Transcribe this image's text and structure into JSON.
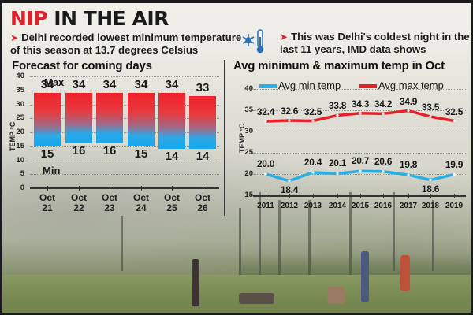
{
  "header": {
    "title_red": "NIP",
    "title_black": "IN THE AIR",
    "bullet1": "Delhi recorded lowest minimum temperature of this season at 13.7 degrees Celsius",
    "bullet1_line1": "Delhi recorded lowest minimum temperature",
    "bullet1_line2": "of this season at 13.7 degrees Celsius",
    "bullet2_line1": "This was Delhi's coldest night in the",
    "bullet2_line2": "last 11 years, IMD data shows",
    "arrow": "➤",
    "icon": "snowflake-thermometer-icon"
  },
  "colors": {
    "accent_red": "#e0202a",
    "max_line": "#e8202a",
    "min_line": "#29aee6"
  },
  "chart_data": [
    {
      "type": "bar",
      "title": "Forecast for coming days",
      "ylabel": "TEMP °C",
      "xlabel": "",
      "ylim": [
        0,
        40
      ],
      "yticks": [
        0,
        5,
        10,
        15,
        20,
        25,
        30,
        35,
        40
      ],
      "categories": [
        "Oct 21",
        "Oct 22",
        "Oct 23",
        "Oct 24",
        "Oct 25",
        "Oct 26"
      ],
      "series": [
        {
          "name": "Max",
          "values": [
            34,
            34,
            34,
            34,
            34,
            33
          ]
        },
        {
          "name": "Min",
          "values": [
            15,
            16,
            16,
            15,
            14,
            14
          ]
        }
      ],
      "annotations": [
        "Max",
        "Min"
      ],
      "grid": true,
      "note": "floating range bars from Min to Max, gradient red (top) to blue (bottom)"
    },
    {
      "type": "line",
      "title": "Avg minimum & maximum temp in Oct",
      "ylabel": "TEMP °C",
      "xlabel": "",
      "ylim": [
        15,
        40
      ],
      "yticks": [
        15,
        20,
        25,
        30,
        35,
        40
      ],
      "x": [
        "2011",
        "2012",
        "2013",
        "2014",
        "2015",
        "2016",
        "2017",
        "2018",
        "2019"
      ],
      "series": [
        {
          "name": "Avg min temp",
          "color": "#29aee6",
          "values": [
            20.0,
            18.4,
            20.4,
            20.1,
            20.7,
            20.6,
            19.8,
            18.6,
            19.9
          ]
        },
        {
          "name": "Avg max temp",
          "color": "#e8202a",
          "values": [
            32.4,
            32.6,
            32.5,
            33.8,
            34.3,
            34.2,
            34.9,
            33.5,
            32.5
          ]
        }
      ],
      "legend_position": "top",
      "grid": true
    }
  ],
  "left_chart": {
    "title": "Forecast for coming days",
    "ylabel": "TEMP °C",
    "max_label": "Max",
    "min_label": "Min",
    "yticks": [
      "40",
      "35",
      "30",
      "25",
      "20",
      "15",
      "10",
      "5",
      "0"
    ],
    "days": [
      {
        "month": "Oct",
        "day": "21",
        "max": "34",
        "min": "15"
      },
      {
        "month": "Oct",
        "day": "22",
        "max": "34",
        "min": "16"
      },
      {
        "month": "Oct",
        "day": "23",
        "max": "34",
        "min": "16"
      },
      {
        "month": "Oct",
        "day": "24",
        "max": "34",
        "min": "15"
      },
      {
        "month": "Oct",
        "day": "25",
        "max": "34",
        "min": "14"
      },
      {
        "month": "Oct",
        "day": "26",
        "max": "33",
        "min": "14"
      }
    ]
  },
  "right_chart": {
    "title": "Avg minimum & maximum temp in Oct",
    "ylabel": "TEMP °C",
    "legend_min": "Avg min temp",
    "legend_max": "Avg max temp",
    "yticks": [
      "40",
      "35",
      "30",
      "25",
      "20",
      "15"
    ],
    "years": [
      "2011",
      "2012",
      "2013",
      "2014",
      "2015",
      "2016",
      "2017",
      "2018",
      "2019"
    ],
    "max_labels": [
      "32.4",
      "32.6",
      "32.5",
      "33.8",
      "34.3",
      "34.2",
      "34.9",
      "33.5",
      "32.5"
    ],
    "min_labels": [
      "20.0",
      "18.4",
      "20.4",
      "20.1",
      "20.7",
      "20.6",
      "19.8",
      "18.6",
      "19.9"
    ]
  }
}
